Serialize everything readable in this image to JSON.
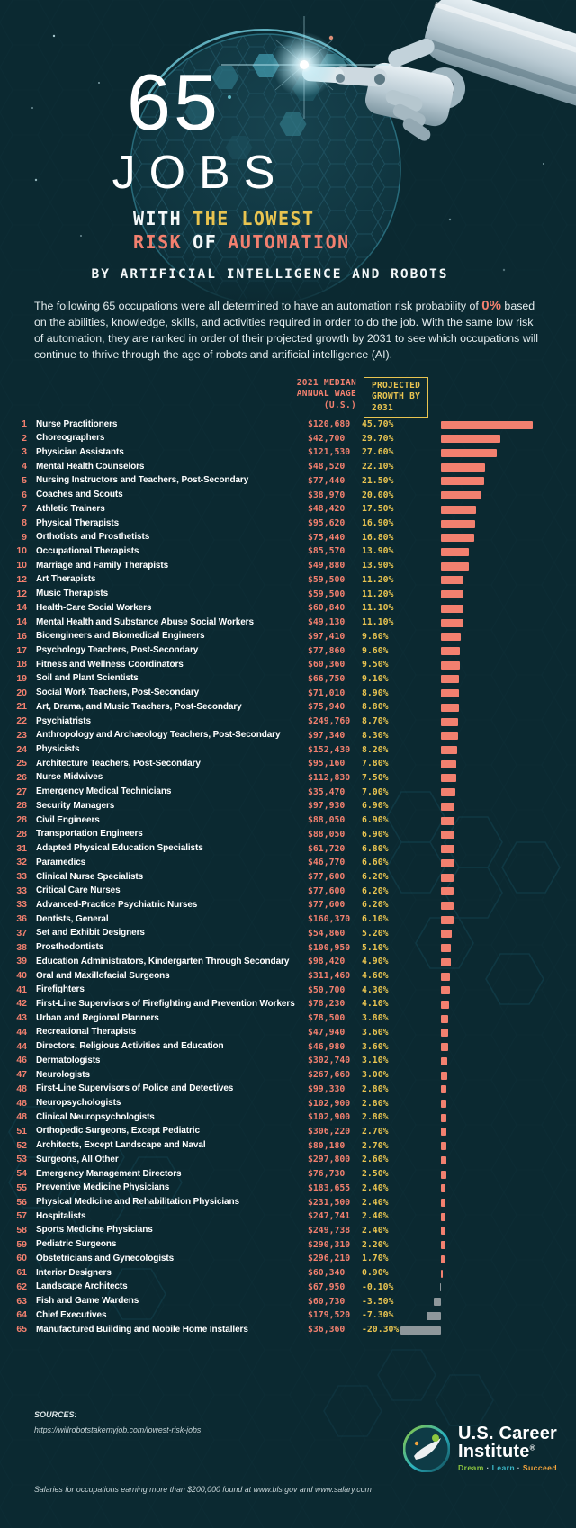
{
  "colors": {
    "background": "#0b2931",
    "accent_salmon": "#f2806f",
    "accent_yellow": "#e9c450",
    "text_white": "#f4f8f9",
    "bar_positive": "#f2806f",
    "bar_negative": "#8e979b",
    "logo_green": "#8dc63f",
    "logo_cyan": "#3bb7c6",
    "logo_orange": "#f3a43c"
  },
  "header": {
    "number": "65",
    "word": "JOBS",
    "line1_a": "WITH",
    "line1_b": "THE LOWEST",
    "line2_a": "RISK",
    "line2_b": "OF",
    "line2_c": "AUTOMATION",
    "byline": "BY ARTIFICIAL INTELLIGENCE AND ROBOTS"
  },
  "intro": {
    "before": "The following 65 occupations were all determined to have an automation risk probability of ",
    "highlight": "0%",
    "after": " based on the abilities, knowledge, skills, and activities required in order to do the job. With the same low risk of automation, they are ranked in order of their projected growth by 2031 to see which occupations will continue to thrive through the age of robots and artificial intelligence (AI)."
  },
  "table": {
    "wage_header": "2021 MEDIAN\nANNUAL WAGE\n(U.S.)",
    "growth_header": "PROJECTED\nGROWTH BY\n2031"
  },
  "chart_data": {
    "type": "bar",
    "title": "65 Jobs With the Lowest Risk of Automation by Artificial Intelligence and Robots",
    "xlabel": "Projected Growth by 2031 (%)",
    "xlim": [
      -20.3,
      45.7
    ],
    "legend": [
      "2021 Median Annual Wage (U.S.)",
      "Projected Growth by 2031"
    ],
    "rows": [
      {
        "rank": "1",
        "job": "Nurse Practitioners",
        "wage": "$120,680",
        "growth": "45.70%",
        "value": 45.7
      },
      {
        "rank": "2",
        "job": "Choreographers",
        "wage": "$42,700",
        "growth": "29.70%",
        "value": 29.7
      },
      {
        "rank": "3",
        "job": "Physician Assistants",
        "wage": "$121,530",
        "growth": "27.60%",
        "value": 27.6
      },
      {
        "rank": "4",
        "job": "Mental Health Counselors",
        "wage": "$48,520",
        "growth": "22.10%",
        "value": 22.1
      },
      {
        "rank": "5",
        "job": "Nursing Instructors and Teachers, Post-Secondary",
        "wage": "$77,440",
        "growth": "21.50%",
        "value": 21.5
      },
      {
        "rank": "6",
        "job": "Coaches and Scouts",
        "wage": "$38,970",
        "growth": "20.00%",
        "value": 20.0
      },
      {
        "rank": "7",
        "job": "Athletic Trainers",
        "wage": "$48,420",
        "growth": "17.50%",
        "value": 17.5
      },
      {
        "rank": "8",
        "job": "Physical Therapists",
        "wage": "$95,620",
        "growth": "16.90%",
        "value": 16.9
      },
      {
        "rank": "9",
        "job": "Orthotists and Prosthetists",
        "wage": "$75,440",
        "growth": "16.80%",
        "value": 16.8
      },
      {
        "rank": "10",
        "job": "Occupational Therapists",
        "wage": "$85,570",
        "growth": "13.90%",
        "value": 13.9
      },
      {
        "rank": "10",
        "job": "Marriage and Family Therapists",
        "wage": "$49,880",
        "growth": "13.90%",
        "value": 13.9
      },
      {
        "rank": "12",
        "job": "Art Therapists",
        "wage": "$59,500",
        "growth": "11.20%",
        "value": 11.2
      },
      {
        "rank": "12",
        "job": "Music Therapists",
        "wage": "$59,500",
        "growth": "11.20%",
        "value": 11.2
      },
      {
        "rank": "14",
        "job": "Health-Care Social Workers",
        "wage": "$60,840",
        "growth": "11.10%",
        "value": 11.1
      },
      {
        "rank": "14",
        "job": "Mental Health and Substance Abuse Social Workers",
        "wage": "$49,130",
        "growth": "11.10%",
        "value": 11.1
      },
      {
        "rank": "16",
        "job": "Bioengineers and Biomedical Engineers",
        "wage": "$97,410",
        "growth": "9.80%",
        "value": 9.8
      },
      {
        "rank": "17",
        "job": "Psychology Teachers, Post-Secondary",
        "wage": "$77,860",
        "growth": "9.60%",
        "value": 9.6
      },
      {
        "rank": "18",
        "job": "Fitness and Wellness Coordinators",
        "wage": "$60,360",
        "growth": "9.50%",
        "value": 9.5
      },
      {
        "rank": "19",
        "job": "Soil and Plant Scientists",
        "wage": "$66,750",
        "growth": "9.10%",
        "value": 9.1
      },
      {
        "rank": "20",
        "job": "Social Work Teachers, Post-Secondary",
        "wage": "$71,010",
        "growth": "8.90%",
        "value": 8.9
      },
      {
        "rank": "21",
        "job": "Art, Drama, and Music Teachers, Post-Secondary",
        "wage": "$75,940",
        "growth": "8.80%",
        "value": 8.8
      },
      {
        "rank": "22",
        "job": "Psychiatrists",
        "wage": "$249,760",
        "growth": "8.70%",
        "value": 8.7
      },
      {
        "rank": "23",
        "job": "Anthropology and Archaeology Teachers, Post-Secondary",
        "wage": "$97,340",
        "growth": "8.30%",
        "value": 8.3
      },
      {
        "rank": "24",
        "job": "Physicists",
        "wage": "$152,430",
        "growth": "8.20%",
        "value": 8.2
      },
      {
        "rank": "25",
        "job": "Architecture Teachers, Post-Secondary",
        "wage": "$95,160",
        "growth": "7.80%",
        "value": 7.8
      },
      {
        "rank": "26",
        "job": "Nurse Midwives",
        "wage": "$112,830",
        "growth": "7.50%",
        "value": 7.5
      },
      {
        "rank": "27",
        "job": "Emergency Medical Technicians",
        "wage": "$35,470",
        "growth": "7.00%",
        "value": 7.0
      },
      {
        "rank": "28",
        "job": "Security Managers",
        "wage": "$97,930",
        "growth": "6.90%",
        "value": 6.9
      },
      {
        "rank": "28",
        "job": "Civil Engineers",
        "wage": "$88,050",
        "growth": "6.90%",
        "value": 6.9
      },
      {
        "rank": "28",
        "job": "Transportation Engineers",
        "wage": "$88,050",
        "growth": "6.90%",
        "value": 6.9
      },
      {
        "rank": "31",
        "job": "Adapted Physical Education Specialists",
        "wage": "$61,720",
        "growth": "6.80%",
        "value": 6.8
      },
      {
        "rank": "32",
        "job": "Paramedics",
        "wage": "$46,770",
        "growth": "6.60%",
        "value": 6.6
      },
      {
        "rank": "33",
        "job": "Clinical Nurse Specialists",
        "wage": "$77,600",
        "growth": "6.20%",
        "value": 6.2
      },
      {
        "rank": "33",
        "job": "Critical Care Nurses",
        "wage": "$77,600",
        "growth": "6.20%",
        "value": 6.2
      },
      {
        "rank": "33",
        "job": "Advanced-Practice Psychiatric Nurses",
        "wage": "$77,600",
        "growth": "6.20%",
        "value": 6.2
      },
      {
        "rank": "36",
        "job": "Dentists, General",
        "wage": "$160,370",
        "growth": "6.10%",
        "value": 6.1
      },
      {
        "rank": "37",
        "job": "Set and Exhibit Designers",
        "wage": "$54,860",
        "growth": "5.20%",
        "value": 5.2
      },
      {
        "rank": "38",
        "job": "Prosthodontists",
        "wage": "$100,950",
        "growth": "5.10%",
        "value": 5.1
      },
      {
        "rank": "39",
        "job": "Education Administrators, Kindergarten Through Secondary",
        "wage": "$98,420",
        "growth": "4.90%",
        "value": 4.9
      },
      {
        "rank": "40",
        "job": "Oral and Maxillofacial Surgeons",
        "wage": "$311,460",
        "growth": "4.60%",
        "value": 4.6
      },
      {
        "rank": "41",
        "job": "Firefighters",
        "wage": "$50,700",
        "growth": "4.30%",
        "value": 4.3
      },
      {
        "rank": "42",
        "job": "First-Line Supervisors of Firefighting and Prevention Workers",
        "wage": "$78,230",
        "growth": "4.10%",
        "value": 4.1
      },
      {
        "rank": "43",
        "job": "Urban and Regional Planners",
        "wage": "$78,500",
        "growth": "3.80%",
        "value": 3.8
      },
      {
        "rank": "44",
        "job": "Recreational Therapists",
        "wage": "$47,940",
        "growth": "3.60%",
        "value": 3.6
      },
      {
        "rank": "44",
        "job": "Directors, Religious Activities and Education",
        "wage": "$46,980",
        "growth": "3.60%",
        "value": 3.6
      },
      {
        "rank": "46",
        "job": "Dermatologists",
        "wage": "$302,740",
        "growth": "3.10%",
        "value": 3.1
      },
      {
        "rank": "47",
        "job": "Neurologists",
        "wage": "$267,660",
        "growth": "3.00%",
        "value": 3.0
      },
      {
        "rank": "48",
        "job": "First-Line Supervisors of Police and Detectives",
        "wage": "$99,330",
        "growth": "2.80%",
        "value": 2.8
      },
      {
        "rank": "48",
        "job": "Neuropsychologists",
        "wage": "$102,900",
        "growth": "2.80%",
        "value": 2.8
      },
      {
        "rank": "48",
        "job": "Clinical Neuropsychologists",
        "wage": "$102,900",
        "growth": "2.80%",
        "value": 2.8
      },
      {
        "rank": "51",
        "job": "Orthopedic Surgeons, Except Pediatric",
        "wage": "$306,220",
        "growth": "2.70%",
        "value": 2.7
      },
      {
        "rank": "52",
        "job": "Architects, Except Landscape and Naval",
        "wage": "$80,180",
        "growth": "2.70%",
        "value": 2.7
      },
      {
        "rank": "53",
        "job": "Surgeons, All Other",
        "wage": "$297,800",
        "growth": "2.60%",
        "value": 2.6
      },
      {
        "rank": "54",
        "job": "Emergency Management Directors",
        "wage": "$76,730",
        "growth": "2.50%",
        "value": 2.5
      },
      {
        "rank": "55",
        "job": "Preventive Medicine Physicians",
        "wage": "$183,655",
        "growth": "2.40%",
        "value": 2.4
      },
      {
        "rank": "56",
        "job": "Physical Medicine and Rehabilitation Physicians",
        "wage": "$231,500",
        "growth": "2.40%",
        "value": 2.4
      },
      {
        "rank": "57",
        "job": "Hospitalists",
        "wage": "$247,741",
        "growth": "2.40%",
        "value": 2.4
      },
      {
        "rank": "58",
        "job": "Sports Medicine Physicians",
        "wage": "$249,738",
        "growth": "2.40%",
        "value": 2.4
      },
      {
        "rank": "59",
        "job": "Pediatric Surgeons",
        "wage": "$290,310",
        "growth": "2.20%",
        "value": 2.2
      },
      {
        "rank": "60",
        "job": "Obstetricians and Gynecologists",
        "wage": "$296,210",
        "growth": "1.70%",
        "value": 1.7
      },
      {
        "rank": "61",
        "job": "Interior Designers",
        "wage": "$60,340",
        "growth": "0.90%",
        "value": 0.9
      },
      {
        "rank": "62",
        "job": "Landscape Architects",
        "wage": "$67,950",
        "growth": "-0.10%",
        "value": -0.1
      },
      {
        "rank": "63",
        "job": "Fish and Game Wardens",
        "wage": "$60,730",
        "growth": "-3.50%",
        "value": -3.5
      },
      {
        "rank": "64",
        "job": "Chief Executives",
        "wage": "$179,520",
        "growth": "-7.30%",
        "value": -7.3
      },
      {
        "rank": "65",
        "job": "Manufactured Building and Mobile Home Installers",
        "wage": "$36,360",
        "growth": "-20.30%",
        "value": -20.3
      }
    ]
  },
  "footer": {
    "sources_label": "SOURCES:",
    "source1": "https://willrobotstakemyjob.com/lowest-risk-jobs",
    "source2": "Salaries for occupations earning more than $200,000 found at www.bls.gov and www.salary.com",
    "logo": {
      "name_line1": "U.S. Career",
      "name_line2": "Institute",
      "registered": "®",
      "tagline_words": [
        "Dream",
        "Learn",
        "Succeed"
      ],
      "tagline_sep": "·"
    }
  }
}
